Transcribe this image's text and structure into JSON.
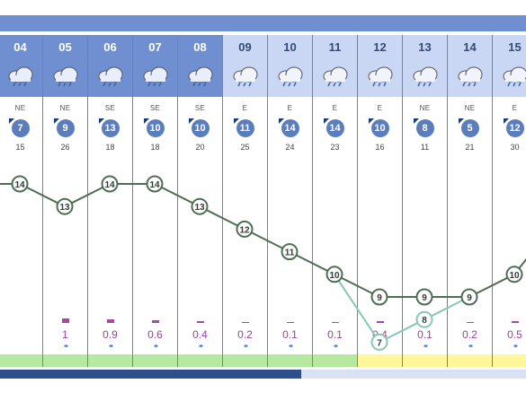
{
  "colors": {
    "header_past": "#6f8fd0",
    "header_future": "#c9d7f4",
    "line_main": "#4f6e55",
    "line_alt": "#87c7b4",
    "rain": "#a34aa8",
    "band_green": "#b7e89f",
    "band_yellow": "#fff79a"
  },
  "icons": {
    "weather": "rain-cloud-icon",
    "rain": "rain-drops-icon",
    "wind": "wind-direction-arrow-icon"
  },
  "days": [
    {
      "day": "04",
      "dir": "NE",
      "speed": "7",
      "gust": "15",
      "max": 14,
      "min": null,
      "rain": "",
      "rain_level": 0,
      "band": "green",
      "past": true
    },
    {
      "day": "05",
      "dir": "NE",
      "speed": "9",
      "gust": "26",
      "max": 13,
      "min": null,
      "rain": "1",
      "rain_level": 1.0,
      "band": "green",
      "past": true
    },
    {
      "day": "06",
      "dir": "SE",
      "speed": "13",
      "gust": "18",
      "max": 14,
      "min": null,
      "rain": "0.9",
      "rain_level": 0.9,
      "band": "green",
      "past": true
    },
    {
      "day": "07",
      "dir": "SE",
      "speed": "10",
      "gust": "18",
      "max": 14,
      "min": null,
      "rain": "0.6",
      "rain_level": 0.6,
      "band": "green",
      "past": true
    },
    {
      "day": "08",
      "dir": "SE",
      "speed": "10",
      "gust": "20",
      "max": 13,
      "min": null,
      "rain": "0.4",
      "rain_level": 0.4,
      "band": "green",
      "past": true
    },
    {
      "day": "09",
      "dir": "E",
      "speed": "11",
      "gust": "25",
      "max": 12,
      "min": null,
      "rain": "0.2",
      "rain_level": 0.2,
      "band": "green",
      "past": false
    },
    {
      "day": "10",
      "dir": "E",
      "speed": "14",
      "gust": "24",
      "max": 11,
      "min": null,
      "rain": "0.1",
      "rain_level": 0.1,
      "band": "green",
      "past": false
    },
    {
      "day": "11",
      "dir": "E",
      "speed": "14",
      "gust": "23",
      "max": 10,
      "min": null,
      "rain": "0.1",
      "rain_level": 0.1,
      "band": "green",
      "past": false
    },
    {
      "day": "12",
      "dir": "E",
      "speed": "10",
      "gust": "16",
      "max": 9,
      "min": 7,
      "rain": "0.4",
      "rain_level": 0.4,
      "band": "yellow",
      "past": false
    },
    {
      "day": "13",
      "dir": "NE",
      "speed": "8",
      "gust": "11",
      "max": 9,
      "min": 8,
      "rain": "0.1",
      "rain_level": 0.1,
      "band": "yellow",
      "past": false
    },
    {
      "day": "14",
      "dir": "NE",
      "speed": "5",
      "gust": "21",
      "max": 9,
      "min": null,
      "rain": "0.2",
      "rain_level": 0.2,
      "band": "yellow",
      "past": false
    },
    {
      "day": "15",
      "dir": "E",
      "speed": "12",
      "gust": "30",
      "max": 10,
      "min": null,
      "rain": "0.5",
      "rain_level": 0.5,
      "band": "yellow",
      "past": false
    }
  ]
}
